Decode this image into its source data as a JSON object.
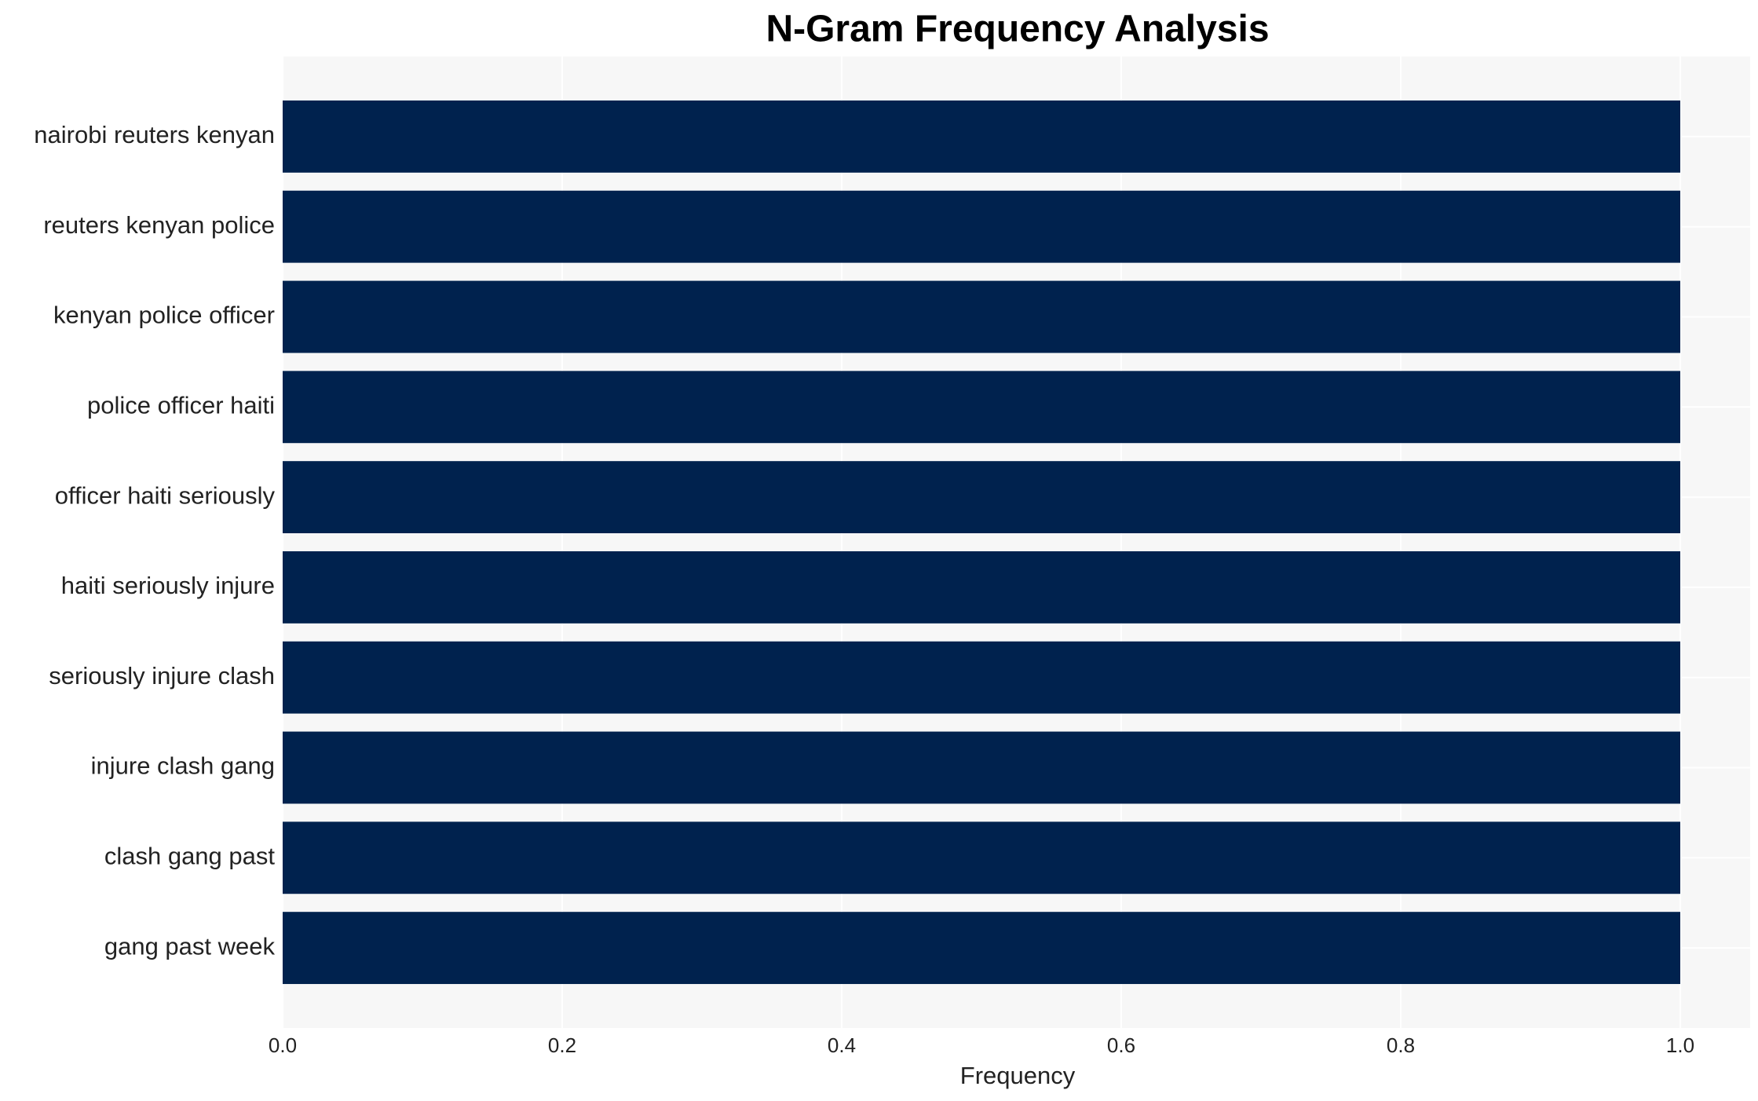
{
  "chart_data": {
    "type": "barh",
    "title": "N-Gram Frequency Analysis",
    "x_label": "Frequency",
    "categories": [
      "nairobi reuters kenyan",
      "reuters kenyan police",
      "kenyan police officer",
      "police officer haiti",
      "officer haiti seriously",
      "haiti seriously injure",
      "seriously injure clash",
      "injure clash gang",
      "clash gang past",
      "gang past week"
    ],
    "values": [
      1,
      1,
      1,
      1,
      1,
      1,
      1,
      1,
      1,
      1
    ],
    "color": "#00224e",
    "xlim": [
      0,
      1.05
    ],
    "xticks": [
      {
        "value": 0,
        "label": "0.0"
      },
      0.2,
      0.4,
      0.6,
      0.8,
      {
        "value": 1,
        "label": "1.0"
      }
    ],
    "grid": true
  }
}
